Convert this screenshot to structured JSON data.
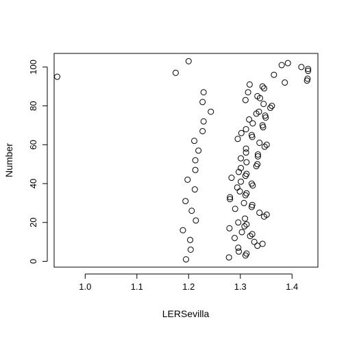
{
  "chart_data": {
    "type": "scatter",
    "title": "",
    "xlabel": "LERSevilla",
    "ylabel": "Number",
    "xlim": [
      0.94,
      1.45
    ],
    "ylim": [
      -3,
      107
    ],
    "grid": false,
    "xticks": [
      1.0,
      1.1,
      1.2,
      1.3,
      1.4
    ],
    "xtick_labels": [
      "1.0",
      "1.1",
      "1.2",
      "1.3",
      "1.4"
    ],
    "yticks": [
      0,
      20,
      40,
      60,
      80,
      100
    ],
    "ytick_labels": [
      "0",
      "20",
      "40",
      "60",
      "80",
      "100"
    ],
    "points": [
      [
        0.946,
        95
      ],
      [
        1.175,
        97
      ],
      [
        1.2,
        103
      ],
      [
        1.229,
        87
      ],
      [
        1.227,
        82
      ],
      [
        1.243,
        77
      ],
      [
        1.229,
        72
      ],
      [
        1.227,
        67
      ],
      [
        1.211,
        62
      ],
      [
        1.219,
        57
      ],
      [
        1.213,
        52
      ],
      [
        1.213,
        47
      ],
      [
        1.198,
        42
      ],
      [
        1.212,
        37
      ],
      [
        1.194,
        31
      ],
      [
        1.206,
        26
      ],
      [
        1.214,
        21
      ],
      [
        1.189,
        16
      ],
      [
        1.203,
        11
      ],
      [
        1.204,
        6
      ],
      [
        1.195,
        1
      ],
      [
        1.38,
        101
      ],
      [
        1.392,
        102
      ],
      [
        1.418,
        100
      ],
      [
        1.431,
        99
      ],
      [
        1.431,
        98
      ],
      [
        1.365,
        96
      ],
      [
        1.43,
        94
      ],
      [
        1.429,
        93
      ],
      [
        1.386,
        92
      ],
      [
        1.318,
        91
      ],
      [
        1.343,
        90
      ],
      [
        1.346,
        89
      ],
      [
        1.315,
        87
      ],
      [
        1.333,
        85
      ],
      [
        1.338,
        84
      ],
      [
        1.31,
        83
      ],
      [
        1.345,
        81
      ],
      [
        1.361,
        80
      ],
      [
        1.358,
        79
      ],
      [
        1.336,
        77
      ],
      [
        1.331,
        76
      ],
      [
        1.348,
        75
      ],
      [
        1.349,
        74
      ],
      [
        1.317,
        73
      ],
      [
        1.324,
        71
      ],
      [
        1.343,
        70
      ],
      [
        1.344,
        69
      ],
      [
        1.311,
        68
      ],
      [
        1.302,
        66
      ],
      [
        1.322,
        65
      ],
      [
        1.323,
        64
      ],
      [
        1.295,
        63
      ],
      [
        1.337,
        61
      ],
      [
        1.351,
        60
      ],
      [
        1.347,
        59
      ],
      [
        1.311,
        58
      ],
      [
        1.311,
        56
      ],
      [
        1.334,
        55
      ],
      [
        1.334,
        54
      ],
      [
        1.301,
        53
      ],
      [
        1.312,
        51
      ],
      [
        1.333,
        50
      ],
      [
        1.331,
        49
      ],
      [
        1.301,
        48
      ],
      [
        1.297,
        46
      ],
      [
        1.312,
        45
      ],
      [
        1.31,
        44
      ],
      [
        1.283,
        43
      ],
      [
        1.301,
        41
      ],
      [
        1.322,
        40
      ],
      [
        1.324,
        39
      ],
      [
        1.294,
        38
      ],
      [
        1.299,
        36
      ],
      [
        1.312,
        35
      ],
      [
        1.31,
        34
      ],
      [
        1.28,
        33
      ],
      [
        1.28,
        32
      ],
      [
        1.307,
        30
      ],
      [
        1.323,
        29
      ],
      [
        1.322,
        28
      ],
      [
        1.29,
        27
      ],
      [
        1.337,
        25
      ],
      [
        1.351,
        24
      ],
      [
        1.346,
        23
      ],
      [
        1.309,
        22
      ],
      [
        1.296,
        20
      ],
      [
        1.312,
        19
      ],
      [
        1.308,
        18
      ],
      [
        1.279,
        17
      ],
      [
        1.303,
        15
      ],
      [
        1.323,
        14
      ],
      [
        1.319,
        13
      ],
      [
        1.289,
        12
      ],
      [
        1.327,
        10
      ],
      [
        1.343,
        9
      ],
      [
        1.333,
        8
      ],
      [
        1.296,
        7
      ],
      [
        1.297,
        5
      ],
      [
        1.312,
        4
      ],
      [
        1.31,
        3
      ],
      [
        1.278,
        2
      ]
    ]
  }
}
